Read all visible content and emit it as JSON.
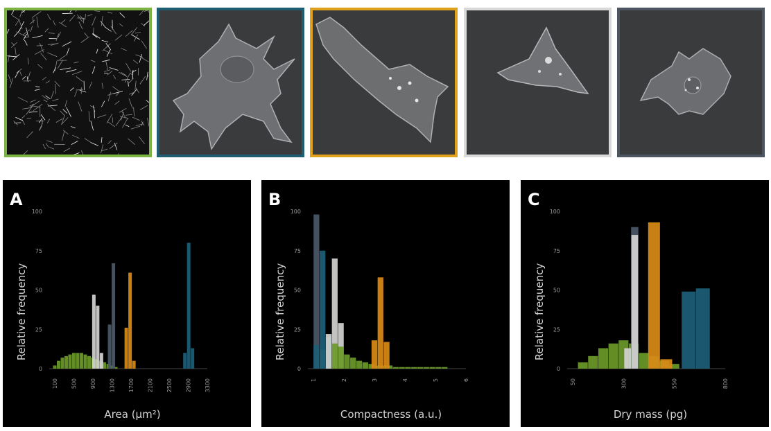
{
  "thumbnails": [
    {
      "name": "cell-population",
      "border": "#7cb342"
    },
    {
      "name": "cell-blue",
      "border": "#1f5d73"
    },
    {
      "name": "cell-orange",
      "border": "#e0a21b"
    },
    {
      "name": "cell-light",
      "border": "#d9d9d9"
    },
    {
      "name": "cell-dark",
      "border": "#4d5560"
    }
  ],
  "colors": {
    "green": "#6b9a28",
    "light": "#d2d2d0",
    "dark": "#4a5868",
    "orange": "#d98a16",
    "blue": "#1d5f78"
  },
  "chart_data": [
    {
      "type": "bar",
      "letter": "A",
      "xlabel": "Area (µm²)",
      "ylabel": "Relative frequency",
      "ylim": [
        0,
        100
      ],
      "xlim": [
        100,
        3300
      ],
      "yticks": [
        "0",
        "25",
        "50",
        "75",
        "100"
      ],
      "xticks": [
        "100",
        "500",
        "900",
        "1300",
        "1700",
        "2100",
        "2500",
        "2900",
        "3300"
      ],
      "series": [
        {
          "color": "green",
          "x": [
            100,
            180,
            260,
            340,
            420,
            500,
            580,
            660,
            740,
            820,
            900,
            980,
            1060,
            1140,
            1220,
            1300,
            1380
          ],
          "values": [
            2,
            5,
            7,
            8,
            9,
            10,
            10,
            10,
            9,
            8,
            7,
            6,
            5,
            4,
            3,
            2,
            1
          ]
        },
        {
          "color": "light",
          "x": [
            920,
            1000,
            1080
          ],
          "values": [
            47,
            40,
            10
          ]
        },
        {
          "color": "dark",
          "x": [
            1250,
            1330
          ],
          "values": [
            28,
            67
          ]
        },
        {
          "color": "orange",
          "x": [
            1600,
            1680,
            1760
          ],
          "values": [
            26,
            61,
            5
          ]
        },
        {
          "color": "blue",
          "x": [
            2830,
            2910,
            2990
          ],
          "values": [
            10,
            80,
            13
          ]
        }
      ]
    },
    {
      "type": "bar",
      "letter": "B",
      "xlabel": "Compactness (a.u.)",
      "ylabel": "Relative frequency",
      "ylim": [
        0,
        100
      ],
      "xlim": [
        1,
        6
      ],
      "yticks": [
        "0",
        "25",
        "50",
        "75",
        "100"
      ],
      "xticks": [
        "1",
        "2",
        "3",
        "4",
        "5",
        "6"
      ],
      "series": [
        {
          "color": "dark",
          "x": [
            1.1,
            1.3
          ],
          "values": [
            98,
            12
          ]
        },
        {
          "color": "blue",
          "x": [
            1.1,
            1.3,
            1.5
          ],
          "values": [
            15,
            75,
            20
          ]
        },
        {
          "color": "light",
          "x": [
            1.5,
            1.7,
            1.9
          ],
          "values": [
            22,
            70,
            29
          ]
        },
        {
          "color": "green",
          "x": [
            1.7,
            1.9,
            2.1,
            2.3,
            2.5,
            2.7,
            2.9,
            3.1,
            3.3,
            3.5,
            3.7,
            3.9,
            4.1,
            4.3,
            4.5,
            4.7,
            4.9,
            5.1,
            5.3
          ],
          "values": [
            16,
            14,
            9,
            7,
            5,
            4,
            3,
            2,
            2,
            2,
            1,
            1,
            1,
            1,
            1,
            1,
            1,
            1,
            1
          ]
        },
        {
          "color": "orange",
          "x": [
            3.0,
            3.2,
            3.4
          ],
          "values": [
            18,
            58,
            17
          ]
        }
      ]
    },
    {
      "type": "bar",
      "letter": "C",
      "xlabel": "Dry mass (pg)",
      "ylabel": "Relative frequency",
      "ylim": [
        0,
        100
      ],
      "xlim": [
        50,
        800
      ],
      "yticks": [
        "0",
        "25",
        "50",
        "75",
        "100"
      ],
      "xticks": [
        "50",
        "300",
        "550",
        "800"
      ],
      "series": [
        {
          "color": "green",
          "x": [
            100,
            150,
            200,
            250,
            300,
            350,
            400,
            450,
            500,
            550
          ],
          "values": [
            4,
            8,
            13,
            16,
            18,
            16,
            10,
            8,
            5,
            3
          ]
        },
        {
          "color": "dark",
          "x": [
            355
          ],
          "values": [
            90
          ]
        },
        {
          "color": "light",
          "x": [
            320,
            355
          ],
          "values": [
            13,
            85
          ]
        },
        {
          "color": "orange",
          "x": [
            450,
            510
          ],
          "values": [
            93,
            6
          ]
        },
        {
          "color": "blue",
          "x": [
            620,
            690
          ],
          "values": [
            49,
            51
          ]
        }
      ]
    }
  ]
}
